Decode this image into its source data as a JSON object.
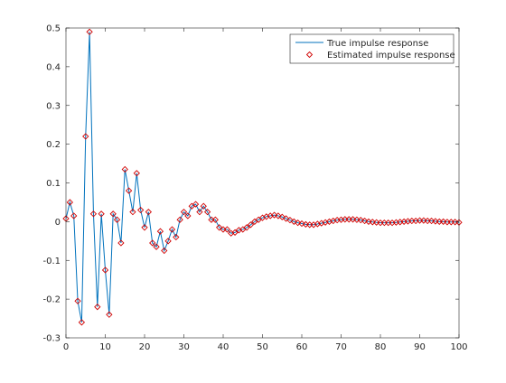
{
  "chart_data": {
    "type": "line",
    "xlim": [
      0,
      100
    ],
    "ylim": [
      -0.3,
      0.5
    ],
    "xticks": [
      0,
      10,
      20,
      30,
      40,
      50,
      60,
      70,
      80,
      90,
      100
    ],
    "yticks": [
      -0.3,
      -0.2,
      -0.1,
      0,
      0.1,
      0.2,
      0.3,
      0.4,
      0.5
    ],
    "xtick_labels": [
      "0",
      "10",
      "20",
      "30",
      "40",
      "50",
      "60",
      "70",
      "80",
      "90",
      "100"
    ],
    "ytick_labels": [
      "-0.3",
      "-0.2",
      "-0.1",
      "0",
      "0.1",
      "0.2",
      "0.3",
      "0.4",
      "0.5"
    ],
    "grid": false,
    "legend_position": "top-right",
    "x": [
      0,
      1,
      2,
      3,
      4,
      5,
      6,
      7,
      8,
      9,
      10,
      11,
      12,
      13,
      14,
      15,
      16,
      17,
      18,
      19,
      20,
      21,
      22,
      23,
      24,
      25,
      26,
      27,
      28,
      29,
      30,
      31,
      32,
      33,
      34,
      35,
      36,
      37,
      38,
      39,
      40,
      41,
      42,
      43,
      44,
      45,
      46,
      47,
      48,
      49,
      50,
      51,
      52,
      53,
      54,
      55,
      56,
      57,
      58,
      59,
      60,
      61,
      62,
      63,
      64,
      65,
      66,
      67,
      68,
      69,
      70,
      71,
      72,
      73,
      74,
      75,
      76,
      77,
      78,
      79,
      80,
      81,
      82,
      83,
      84,
      85,
      86,
      87,
      88,
      89,
      90,
      91,
      92,
      93,
      94,
      95,
      96,
      97,
      98,
      99,
      100
    ],
    "series": [
      {
        "name": "True impulse response",
        "style": "line",
        "color": "#0072bd",
        "values": [
          0.008,
          0.05,
          0.015,
          -0.205,
          -0.26,
          0.22,
          0.49,
          0.02,
          -0.22,
          0.02,
          -0.125,
          -0.24,
          0.02,
          0.005,
          -0.055,
          0.135,
          0.08,
          0.025,
          0.125,
          0.03,
          -0.015,
          0.025,
          -0.055,
          -0.065,
          -0.025,
          -0.075,
          -0.05,
          -0.02,
          -0.04,
          0.005,
          0.025,
          0.015,
          0.04,
          0.045,
          0.025,
          0.04,
          0.025,
          0.005,
          0.005,
          -0.015,
          -0.02,
          -0.02,
          -0.03,
          -0.028,
          -0.022,
          -0.02,
          -0.015,
          -0.008,
          0,
          0.005,
          0.01,
          0.013,
          0.015,
          0.017,
          0.015,
          0.012,
          0.008,
          0.004,
          0,
          -0.003,
          -0.005,
          -0.007,
          -0.008,
          -0.008,
          -0.006,
          -0.004,
          -0.002,
          0,
          0.002,
          0.004,
          0.005,
          0.006,
          0.006,
          0.006,
          0.005,
          0.004,
          0.002,
          0,
          -0.001,
          -0.002,
          -0.003,
          -0.003,
          -0.003,
          -0.003,
          -0.002,
          -0.001,
          0,
          0.001,
          0.002,
          0.002,
          0.003,
          0.003,
          0.002,
          0.002,
          0.001,
          0,
          0,
          -0.001,
          -0.001,
          -0.001,
          -0.002
        ]
      },
      {
        "name": "Estimated impulse response",
        "style": "markers",
        "marker": "diamond",
        "color": "#d00000",
        "values": [
          0.008,
          0.05,
          0.015,
          -0.205,
          -0.26,
          0.22,
          0.49,
          0.02,
          -0.22,
          0.02,
          -0.125,
          -0.24,
          0.02,
          0.005,
          -0.055,
          0.135,
          0.08,
          0.025,
          0.125,
          0.03,
          -0.015,
          0.025,
          -0.055,
          -0.065,
          -0.025,
          -0.075,
          -0.05,
          -0.02,
          -0.04,
          0.005,
          0.025,
          0.015,
          0.04,
          0.045,
          0.025,
          0.04,
          0.025,
          0.005,
          0.005,
          -0.015,
          -0.02,
          -0.02,
          -0.03,
          -0.028,
          -0.022,
          -0.02,
          -0.015,
          -0.008,
          0,
          0.005,
          0.01,
          0.013,
          0.015,
          0.017,
          0.015,
          0.012,
          0.008,
          0.004,
          0,
          -0.003,
          -0.005,
          -0.007,
          -0.008,
          -0.008,
          -0.006,
          -0.004,
          -0.002,
          0,
          0.002,
          0.004,
          0.005,
          0.006,
          0.006,
          0.006,
          0.005,
          0.004,
          0.002,
          0,
          -0.001,
          -0.002,
          -0.003,
          -0.003,
          -0.003,
          -0.003,
          -0.002,
          -0.001,
          0,
          0.001,
          0.002,
          0.002,
          0.003,
          0.003,
          0.002,
          0.002,
          0.001,
          0,
          0,
          -0.001,
          -0.001,
          -0.001,
          -0.002
        ]
      }
    ]
  }
}
